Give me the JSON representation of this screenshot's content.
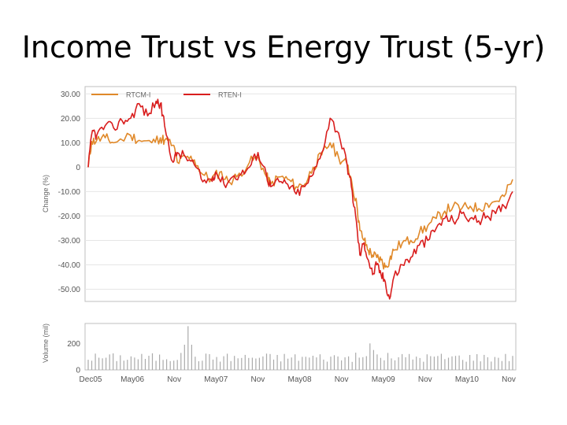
{
  "slide": {
    "title": "Income Trust vs Energy Trust (5-yr)"
  },
  "chart_data": {
    "type": "line",
    "title": "Income Trust vs Energy Trust (5-yr)",
    "ylabel": "Change (%)",
    "ylim": [
      -55,
      33
    ],
    "yticks": [
      30,
      20,
      10,
      0,
      -10,
      -20,
      -30,
      -40,
      -50
    ],
    "ytick_labels": [
      "30.00",
      "20.00",
      "10.00",
      "0",
      "-10.00",
      "-20.00",
      "-30.00",
      "-40.00",
      "-50.00"
    ],
    "grid": true,
    "legend": "top-left",
    "series": [
      {
        "name": "RTCM-I",
        "color": "#e0892a",
        "points": [
          [
            0,
            0
          ],
          [
            0.04,
            10.5
          ],
          [
            0.1,
            11
          ],
          [
            0.2,
            12
          ],
          [
            0.3,
            10
          ],
          [
            0.5,
            13
          ],
          [
            0.6,
            11
          ],
          [
            0.75,
            10
          ],
          [
            0.85,
            12
          ],
          [
            0.9,
            11
          ],
          [
            1.0,
            9
          ],
          [
            1.05,
            2
          ],
          [
            1.15,
            4
          ],
          [
            1.25,
            3
          ],
          [
            1.35,
            -3
          ],
          [
            1.45,
            -5
          ],
          [
            1.55,
            -2
          ],
          [
            1.65,
            -6
          ],
          [
            1.75,
            -4
          ],
          [
            1.9,
            2
          ],
          [
            2.0,
            4
          ],
          [
            2.1,
            -4
          ],
          [
            2.15,
            -7
          ],
          [
            2.25,
            -4
          ],
          [
            2.35,
            -5
          ],
          [
            2.45,
            -8
          ],
          [
            2.55,
            -7
          ],
          [
            2.65,
            0
          ],
          [
            2.75,
            5
          ],
          [
            2.85,
            10
          ],
          [
            2.95,
            4
          ],
          [
            3.05,
            1
          ],
          [
            3.1,
            -5
          ],
          [
            3.17,
            -17
          ],
          [
            3.2,
            -26
          ],
          [
            3.25,
            -30
          ],
          [
            3.3,
            -34
          ],
          [
            3.35,
            -36
          ],
          [
            3.4,
            -37
          ],
          [
            3.45,
            -38
          ],
          [
            3.5,
            -41
          ],
          [
            3.55,
            -38
          ],
          [
            3.6,
            -34
          ],
          [
            3.7,
            -31
          ],
          [
            3.8,
            -30
          ],
          [
            3.9,
            -27
          ],
          [
            4.0,
            -24
          ],
          [
            4.1,
            -21
          ],
          [
            4.2,
            -18
          ],
          [
            4.3,
            -16
          ],
          [
            4.4,
            -17
          ],
          [
            4.5,
            -16
          ],
          [
            4.6,
            -17
          ],
          [
            4.7,
            -15
          ],
          [
            4.8,
            -14
          ],
          [
            4.9,
            -12
          ],
          [
            5.0,
            -5
          ]
        ]
      },
      {
        "name": "RTEN-I",
        "color": "#d91e1e",
        "points": [
          [
            0,
            0
          ],
          [
            0.05,
            15
          ],
          [
            0.1,
            13
          ],
          [
            0.2,
            17
          ],
          [
            0.3,
            16
          ],
          [
            0.4,
            19
          ],
          [
            0.5,
            20
          ],
          [
            0.6,
            26
          ],
          [
            0.7,
            21
          ],
          [
            0.8,
            27
          ],
          [
            0.85,
            26
          ],
          [
            0.9,
            17
          ],
          [
            1.0,
            2
          ],
          [
            1.05,
            6
          ],
          [
            1.15,
            4
          ],
          [
            1.25,
            1
          ],
          [
            1.35,
            -6
          ],
          [
            1.45,
            -5
          ],
          [
            1.5,
            -2
          ],
          [
            1.6,
            -7
          ],
          [
            1.7,
            -4
          ],
          [
            1.8,
            -3
          ],
          [
            1.9,
            0
          ],
          [
            2.0,
            6
          ],
          [
            2.1,
            -3
          ],
          [
            2.15,
            -8
          ],
          [
            2.25,
            -6
          ],
          [
            2.35,
            -7
          ],
          [
            2.45,
            -11
          ],
          [
            2.55,
            -8
          ],
          [
            2.65,
            -3
          ],
          [
            2.75,
            6
          ],
          [
            2.85,
            20
          ],
          [
            2.95,
            14
          ],
          [
            3.05,
            1
          ],
          [
            3.1,
            -8
          ],
          [
            3.15,
            -20
          ],
          [
            3.2,
            -36
          ],
          [
            3.25,
            -31
          ],
          [
            3.3,
            -38
          ],
          [
            3.35,
            -44
          ],
          [
            3.4,
            -40
          ],
          [
            3.45,
            -44
          ],
          [
            3.5,
            -47
          ],
          [
            3.55,
            -54
          ],
          [
            3.6,
            -45
          ],
          [
            3.7,
            -40
          ],
          [
            3.8,
            -37
          ],
          [
            3.9,
            -32
          ],
          [
            4.0,
            -30
          ],
          [
            4.1,
            -25
          ],
          [
            4.2,
            -21
          ],
          [
            4.3,
            -22
          ],
          [
            4.4,
            -19
          ],
          [
            4.5,
            -21
          ],
          [
            4.6,
            -22
          ],
          [
            4.7,
            -20
          ],
          [
            4.8,
            -19
          ],
          [
            4.9,
            -16
          ],
          [
            5.0,
            -10
          ]
        ]
      }
    ],
    "volume": {
      "ylabel": "Volume (mil)",
      "ylim": [
        0,
        350
      ],
      "yticks": [
        0,
        200
      ],
      "ytick_labels": [
        "0",
        "200"
      ],
      "bar_color": "#aaaaaa"
    },
    "x_tick_labels": [
      "Dec05",
      "May06",
      "Nov",
      "May07",
      "Nov",
      "May08",
      "Nov",
      "May09",
      "Nov",
      "May10",
      "Nov"
    ]
  }
}
